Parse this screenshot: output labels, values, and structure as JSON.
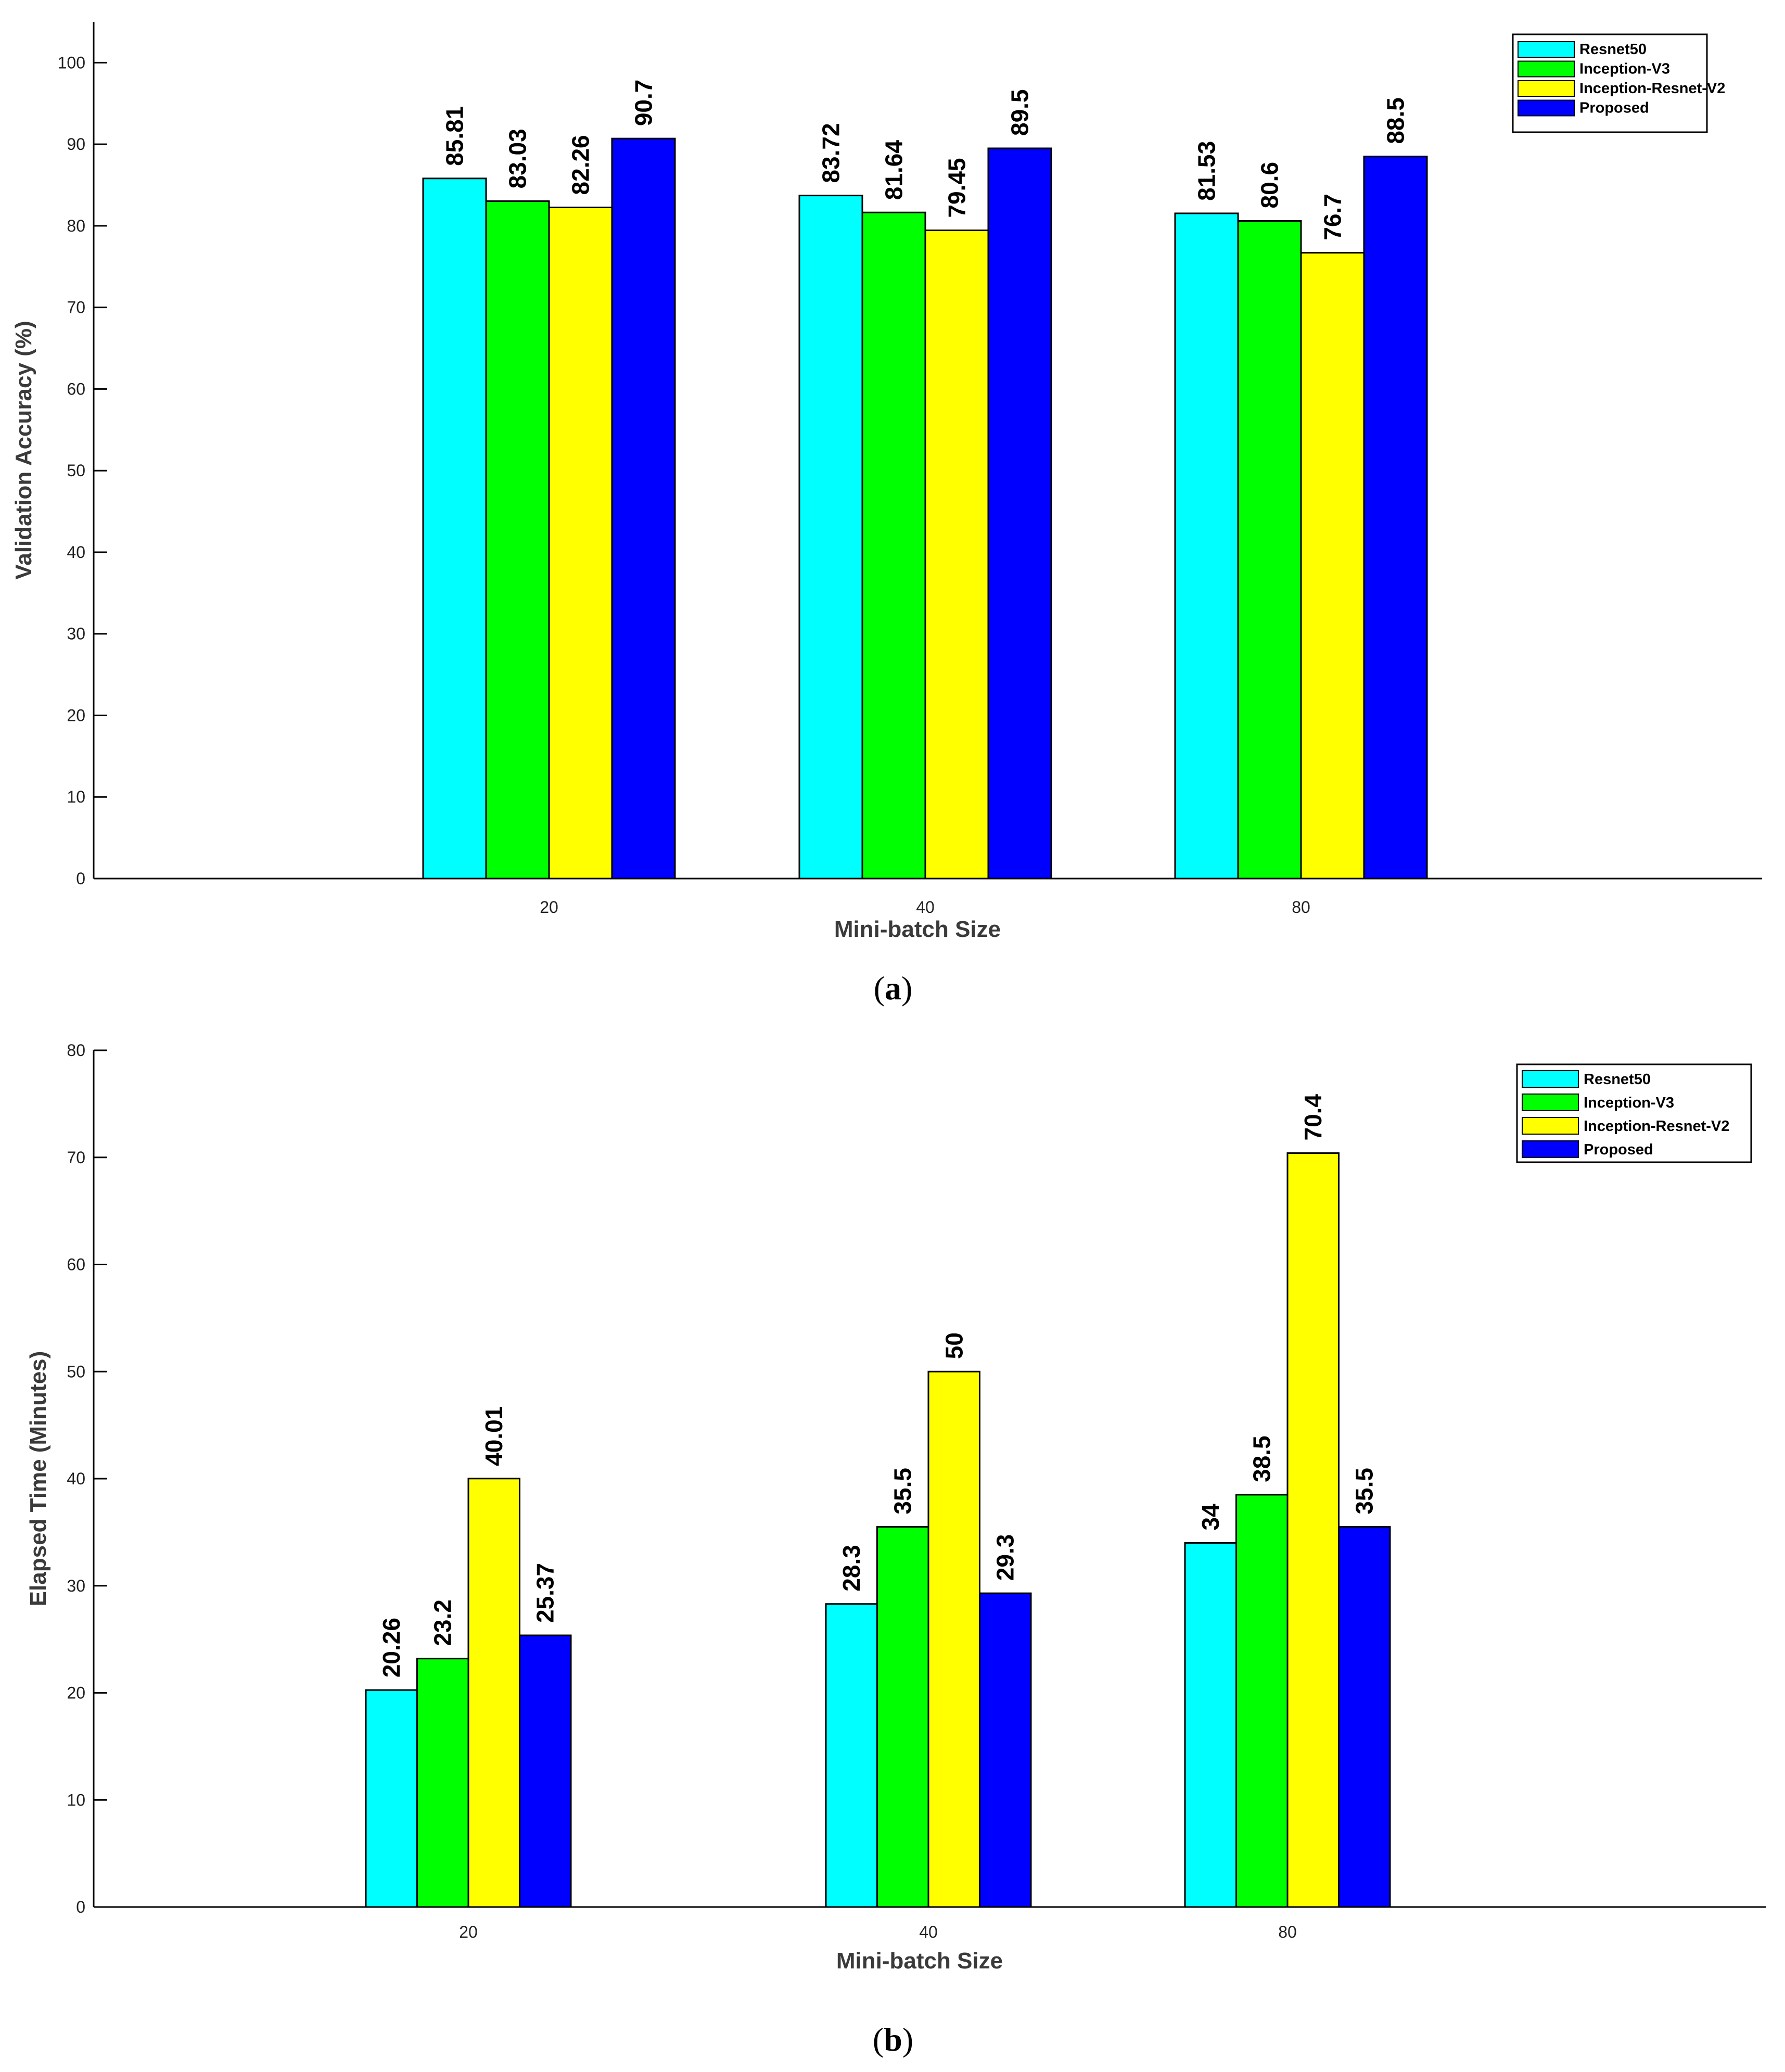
{
  "figure": {
    "captions": [
      {
        "open": "(",
        "letter": "a",
        "close": ")"
      },
      {
        "open": "(",
        "letter": "b",
        "close": ")"
      }
    ]
  },
  "chart_data": [
    {
      "type": "bar",
      "categories": [
        "20",
        "40",
        "80"
      ],
      "series": [
        {
          "name": "Resnet50",
          "color": "#00FFFF",
          "values": [
            85.81,
            83.72,
            81.53
          ],
          "labels": [
            "85.81",
            "83.72",
            "81.53"
          ]
        },
        {
          "name": "Inception-V3",
          "color": "#00FF00",
          "values": [
            83.03,
            81.64,
            80.6
          ],
          "labels": [
            "83.03",
            "81.64",
            "80.6"
          ]
        },
        {
          "name": "Inception-Resnet-V2",
          "color": "#FFFF00",
          "values": [
            82.26,
            79.45,
            76.7
          ],
          "labels": [
            "82.26",
            "79.45",
            "76.7"
          ]
        },
        {
          "name": "Proposed",
          "color": "#0000FF",
          "values": [
            90.7,
            89.5,
            88.5
          ],
          "labels": [
            "90.7",
            "89.5",
            "88.5"
          ]
        }
      ],
      "xlabel": "Mini-batch Size",
      "ylabel": "Validation Accuracy (%)",
      "ylim": [
        0,
        105
      ],
      "yticks": [
        "0",
        "10",
        "20",
        "30",
        "40",
        "50",
        "60",
        "70",
        "80",
        "90",
        "100"
      ],
      "legend_position": "top-right",
      "grid": false
    },
    {
      "type": "bar",
      "categories": [
        "20",
        "40",
        "80"
      ],
      "series": [
        {
          "name": "Resnet50",
          "color": "#00FFFF",
          "values": [
            20.26,
            28.3,
            34
          ],
          "labels": [
            "20.26",
            "28.3",
            "34"
          ]
        },
        {
          "name": "Inception-V3",
          "color": "#00FF00",
          "values": [
            23.2,
            35.5,
            38.5
          ],
          "labels": [
            "23.2",
            "35.5",
            "38.5"
          ]
        },
        {
          "name": "Inception-Resnet-V2",
          "color": "#FFFF00",
          "values": [
            40.01,
            50,
            70.4
          ],
          "labels": [
            "40.01",
            "50",
            "70.4"
          ]
        },
        {
          "name": "Proposed",
          "color": "#0000FF",
          "values": [
            25.37,
            29.3,
            35.5
          ],
          "labels": [
            "25.37",
            "29.3",
            "35.5"
          ]
        }
      ],
      "xlabel": "Mini-batch Size",
      "ylabel": "Elapsed Time (Minutes)",
      "ylim": [
        0,
        80
      ],
      "yticks": [
        "0",
        "10",
        "20",
        "30",
        "40",
        "50",
        "60",
        "70",
        "80"
      ],
      "legend_position": "top-right",
      "grid": false
    }
  ]
}
